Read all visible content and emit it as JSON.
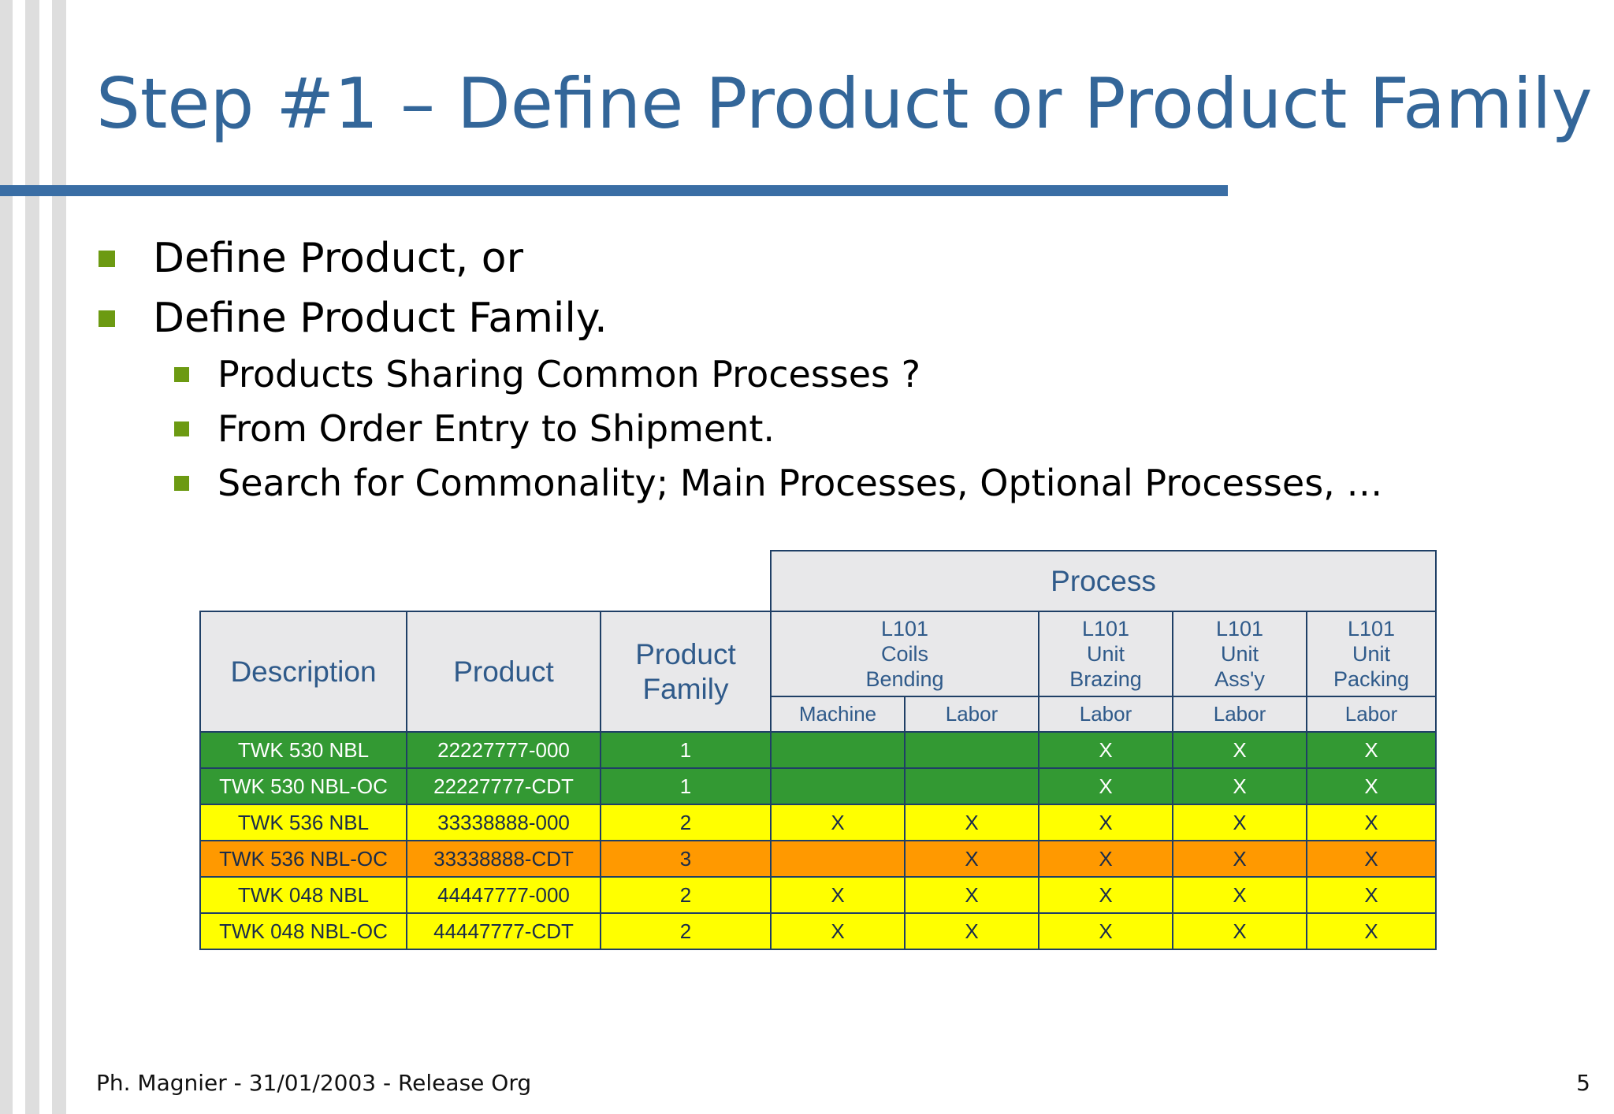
{
  "slide": {
    "title": "Step #1 – Define Product or Product Family",
    "bullets": [
      "Define Product, or",
      "Define Product Family."
    ],
    "sub_bullets": [
      "Products Sharing Common Processes ?",
      "From Order Entry to Shipment.",
      "Search for Commonality; Main Processes, Optional Processes, …"
    ],
    "footer_left": "Ph. Magnier - 31/01/2003 - Release Org",
    "page_number": "5"
  },
  "table": {
    "process_header": "Process",
    "col_description": "Description",
    "col_product": "Product",
    "col_family_line1": "Product",
    "col_family_line2": "Family",
    "groups": [
      {
        "line1": "L101",
        "line2": "Coils",
        "line3": "Bending"
      },
      {
        "line1": "L101",
        "line2": "Unit",
        "line3": "Brazing"
      },
      {
        "line1": "L101",
        "line2": "Unit",
        "line3": "Ass'y"
      },
      {
        "line1": "L101",
        "line2": "Unit",
        "line3": "Packing"
      }
    ],
    "subheaders": [
      "Machine",
      "Labor",
      "Labor",
      "Labor",
      "Labor"
    ],
    "rows": [
      {
        "description": "TWK 530 NBL",
        "product": "22227777-000",
        "family": "1",
        "marks": [
          "",
          "",
          "X",
          "X",
          "X"
        ]
      },
      {
        "description": "TWK 530 NBL-OC",
        "product": "22227777-CDT",
        "family": "1",
        "marks": [
          "",
          "",
          "X",
          "X",
          "X"
        ]
      },
      {
        "description": "TWK 536 NBL",
        "product": "33338888-000",
        "family": "2",
        "marks": [
          "X",
          "X",
          "X",
          "X",
          "X"
        ]
      },
      {
        "description": "TWK 536 NBL-OC",
        "product": "33338888-CDT",
        "family": "3",
        "marks": [
          "",
          "X",
          "X",
          "X",
          "X"
        ]
      },
      {
        "description": "TWK 048 NBL",
        "product": "44447777-000",
        "family": "2",
        "marks": [
          "X",
          "X",
          "X",
          "X",
          "X"
        ]
      },
      {
        "description": "TWK 048 NBL-OC",
        "product": "44447777-CDT",
        "family": "2",
        "marks": [
          "X",
          "X",
          "X",
          "X",
          "X"
        ]
      }
    ]
  },
  "colors": {
    "title": "#336699",
    "bullet": "#6c9a12",
    "family_1": "#339933",
    "family_2": "#ffff00",
    "family_3": "#ff9900"
  }
}
